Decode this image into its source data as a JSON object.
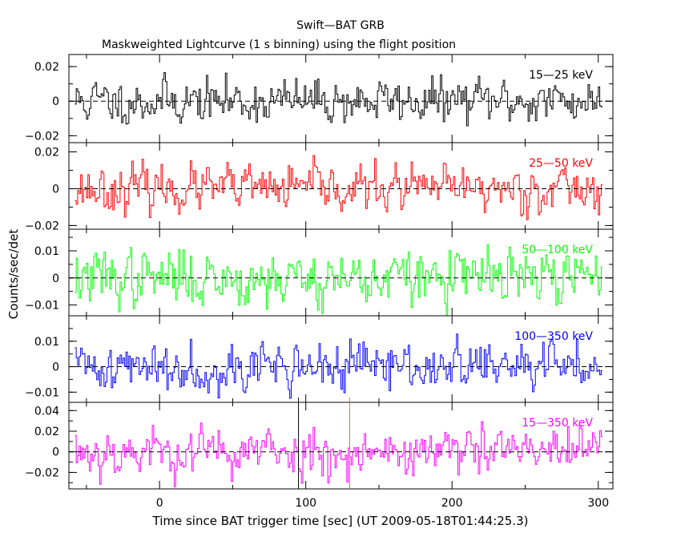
{
  "title": "Swift—BAT GRB",
  "subtitle": "Maskweighted Lightcurve (1 s binning) using the flight position",
  "xlabel": "Time since BAT trigger time [sec] (UT 2009-05-18T01:44:25.3)",
  "ylabel": "Counts/sec/det",
  "colors": {
    "axes": "#000000",
    "zero_line": "#000000",
    "marker_black": "#000000",
    "marker_orange": "#c8821e"
  },
  "chart_data": {
    "type": "line",
    "x_range": [
      -62,
      310
    ],
    "xticks": [
      0,
      100,
      200,
      300
    ],
    "xtick_labels": [
      "0",
      "100",
      "200",
      "300"
    ],
    "data_x_span": [
      -58,
      302
    ],
    "markers": [
      {
        "x": 95,
        "color": "#000000"
      },
      {
        "x": 130,
        "color": "#c8821e"
      }
    ],
    "panels": [
      {
        "name": "15—25 keV",
        "color": "#000000",
        "ylim": [
          -0.024,
          0.027
        ],
        "yticks": [
          -0.02,
          0,
          0.02
        ],
        "ytick_labels": [
          "−0.02",
          "0",
          "0.02"
        ],
        "noise_sigma": 0.0065,
        "seed": 11
      },
      {
        "name": "25—50 keV",
        "color": "#ff0000",
        "ylim": [
          -0.022,
          0.025
        ],
        "yticks": [
          -0.02,
          0,
          0.02
        ],
        "ytick_labels": [
          "−0.02",
          "0",
          "0.02"
        ],
        "noise_sigma": 0.0062,
        "seed": 23
      },
      {
        "name": "50—100 keV",
        "color": "#00ff00",
        "ylim": [
          -0.014,
          0.018
        ],
        "yticks": [
          -0.01,
          0,
          0.01
        ],
        "ytick_labels": [
          "−0.01",
          "0",
          "0.01"
        ],
        "noise_sigma": 0.0052,
        "seed": 37
      },
      {
        "name": "100—350 keV",
        "color": "#0000ff",
        "ylim": [
          -0.014,
          0.02
        ],
        "yticks": [
          -0.01,
          0,
          0.01
        ],
        "ytick_labels": [
          "−0.01",
          "0",
          "0.01"
        ],
        "noise_sigma": 0.0048,
        "seed": 41
      },
      {
        "name": "15—350 keV",
        "color": "#ff00ff",
        "ylim": [
          -0.036,
          0.048
        ],
        "yticks": [
          -0.02,
          0,
          0.02,
          0.04
        ],
        "ytick_labels": [
          "−0.02",
          "0",
          "0.02",
          "0.04"
        ],
        "noise_sigma": 0.012,
        "seed": 53
      }
    ]
  }
}
